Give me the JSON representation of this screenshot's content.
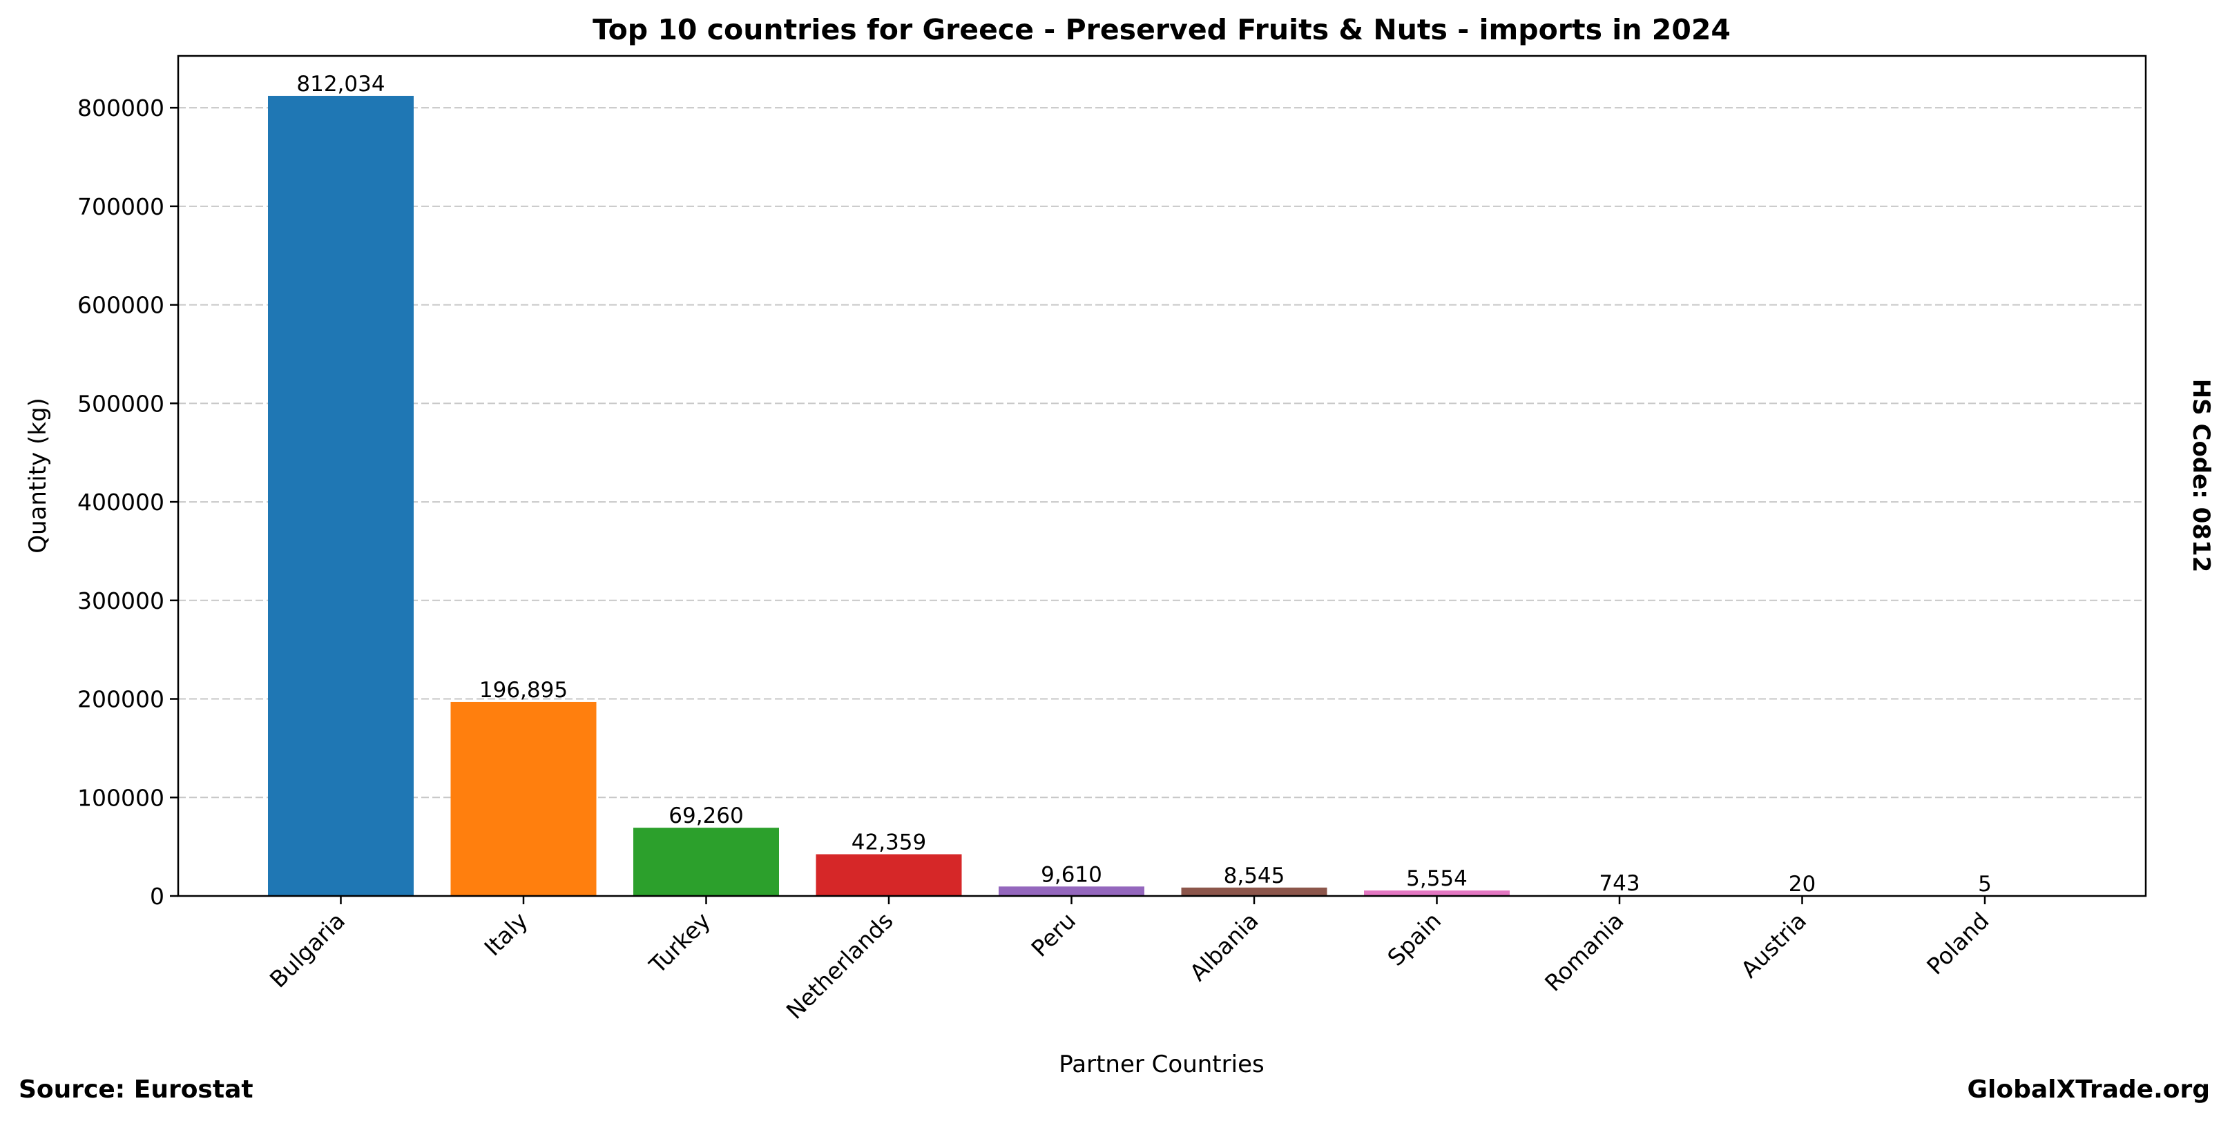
{
  "chart_data": {
    "type": "bar",
    "title": "Top 10 countries for Greece - Preserved Fruits & Nuts - imports in 2024",
    "xlabel": "Partner Countries",
    "ylabel": "Quantity (kg)",
    "categories": [
      "Bulgaria",
      "Italy",
      "Turkey",
      "Netherlands",
      "Peru",
      "Albania",
      "Spain",
      "Romania",
      "Austria",
      "Poland"
    ],
    "values": [
      812034,
      196895,
      69260,
      42359,
      9610,
      8545,
      5554,
      743,
      20,
      5
    ],
    "value_labels": [
      "812,034",
      "196,895",
      "69,260",
      "42,359",
      "9,610",
      "8,545",
      "5,554",
      "743",
      "20",
      "5"
    ],
    "colors": [
      "#1f77b4",
      "#ff7f0e",
      "#2ca02c",
      "#d62728",
      "#9467bd",
      "#8c564b",
      "#e377c2",
      "#7f7f7f",
      "#bcbd22",
      "#17becf"
    ],
    "ylim": [
      0,
      852636
    ],
    "yticks": [
      0,
      100000,
      200000,
      300000,
      400000,
      500000,
      600000,
      700000,
      800000
    ],
    "grid": "horizontal dashed",
    "legend": "none"
  },
  "side_label": "HS Code: 0812",
  "footer": {
    "source": "Source: Eurostat",
    "brand": "GlobalXTrade.org"
  }
}
